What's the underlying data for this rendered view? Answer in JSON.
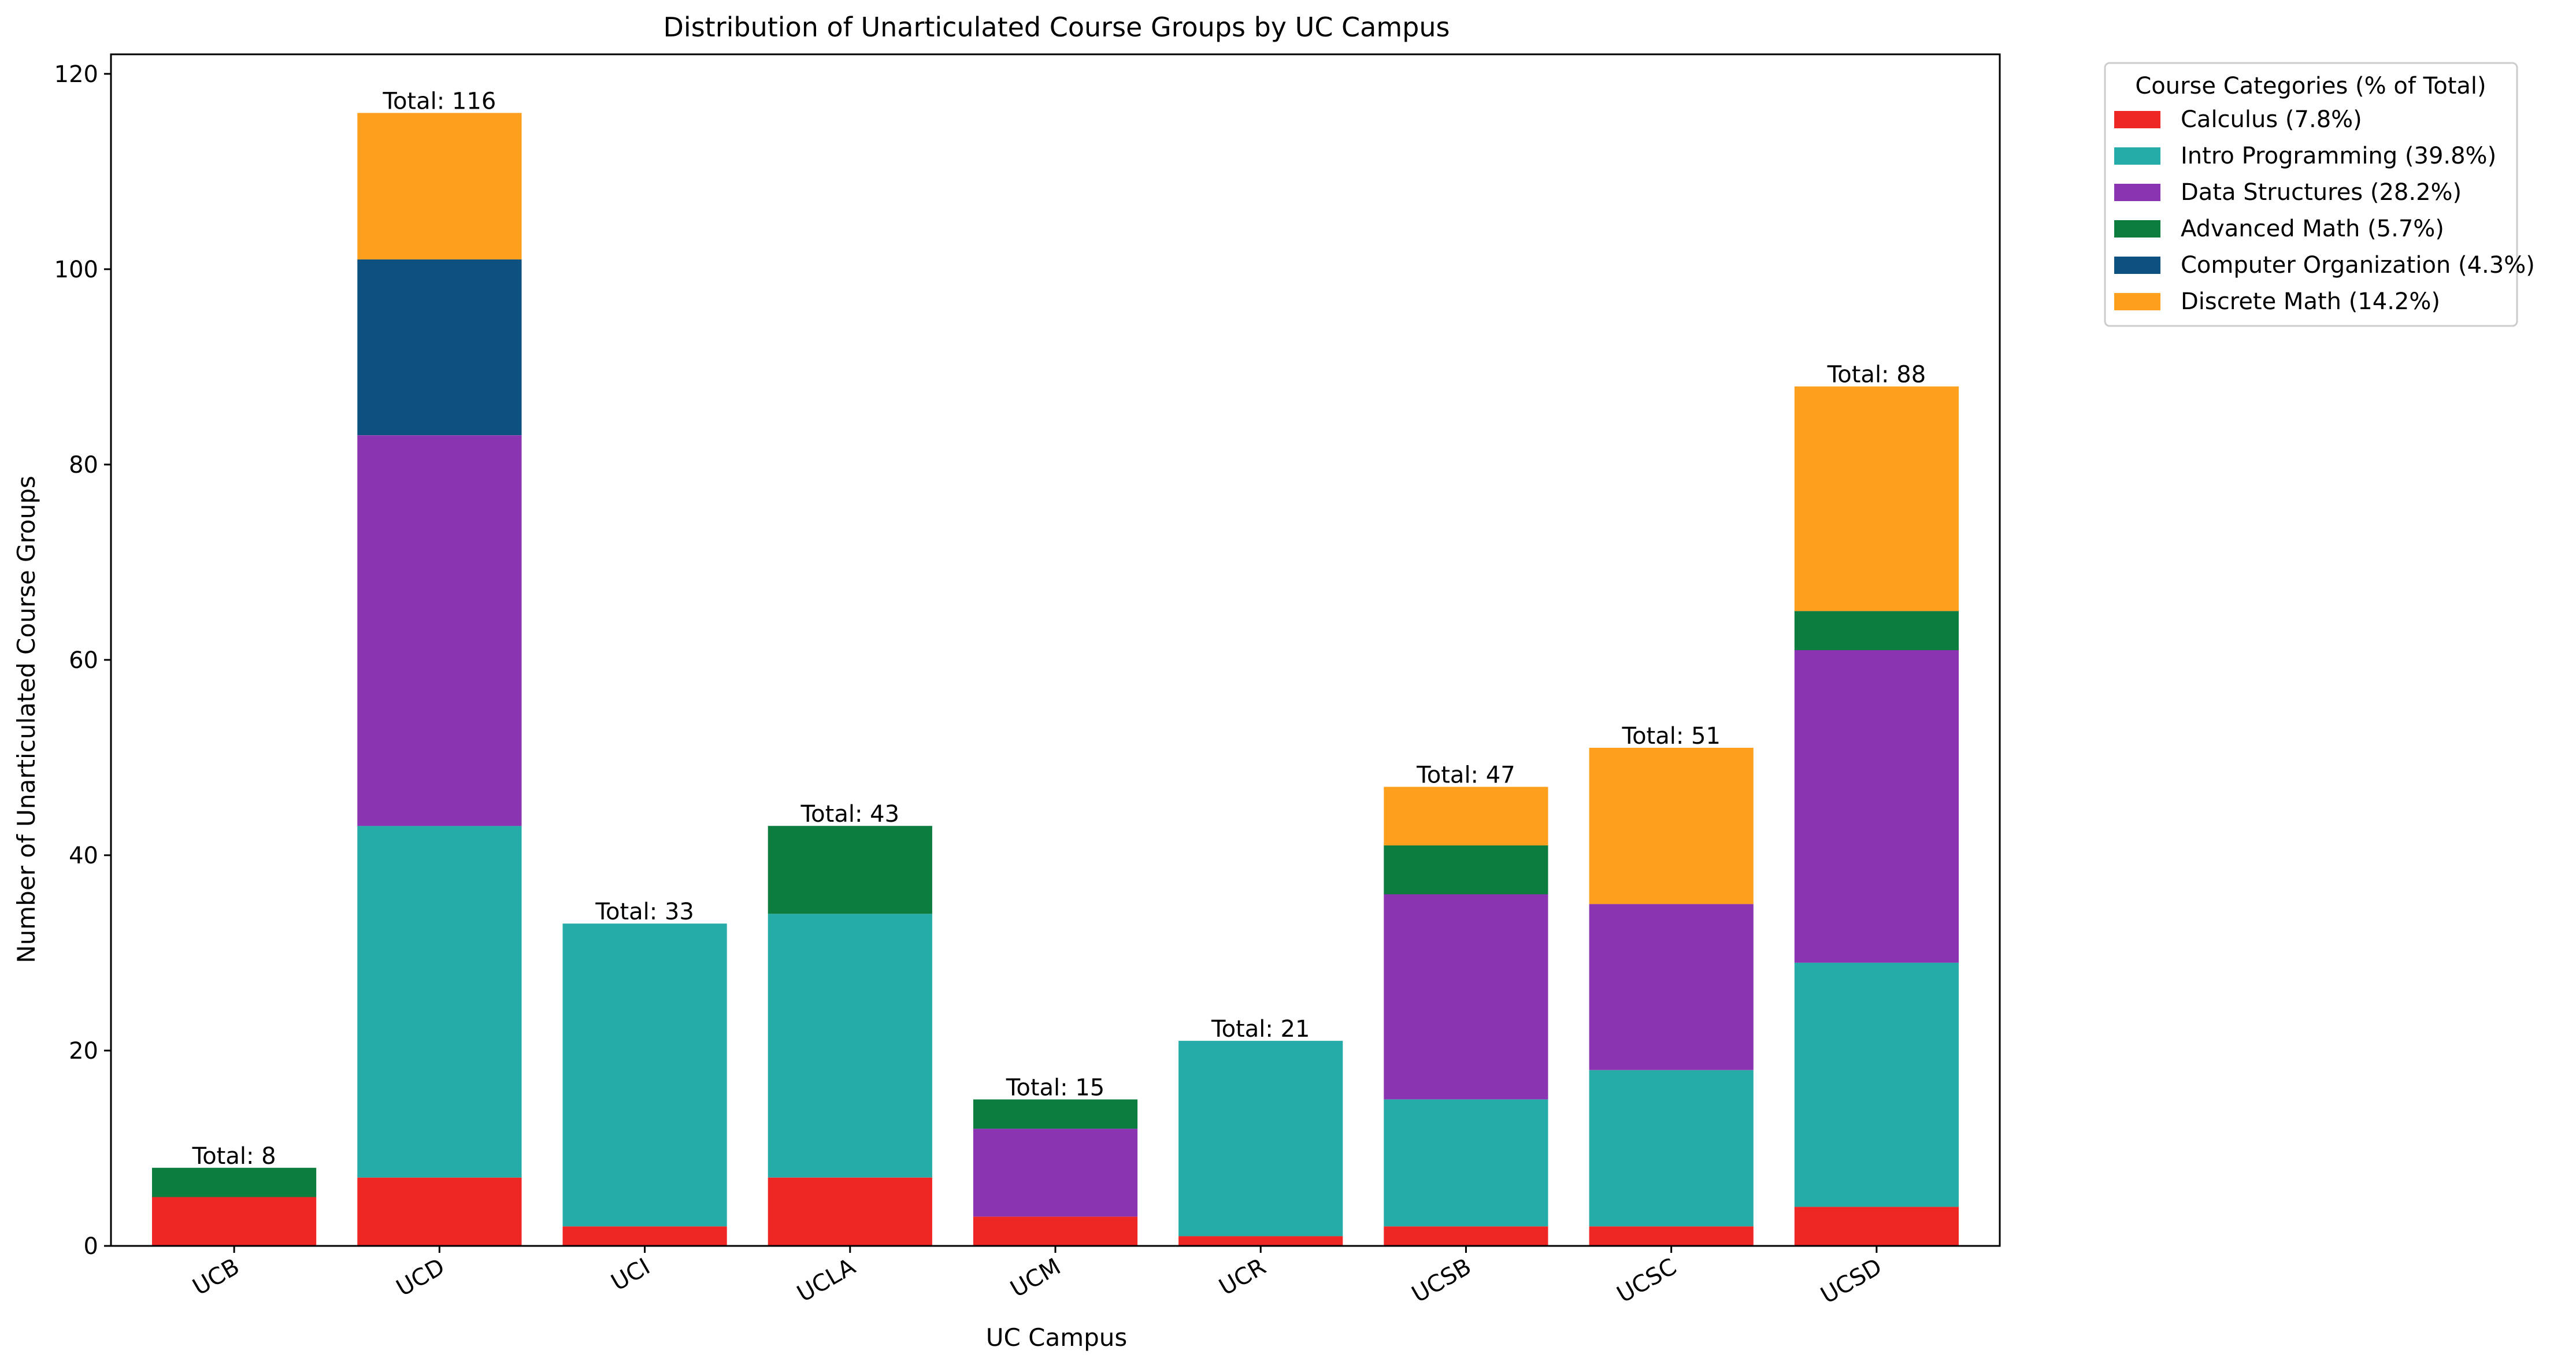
{
  "chart_data": {
    "type": "bar",
    "stacked": true,
    "title": "Distribution of Unarticulated Course Groups by UC Campus",
    "xlabel": "UC Campus",
    "ylabel": "Number of Unarticulated Course Groups",
    "ylim": [
      0,
      122
    ],
    "yticks": [
      0,
      20,
      40,
      60,
      80,
      100,
      120
    ],
    "grid": false,
    "categories": [
      "UCB",
      "UCD",
      "UCI",
      "UCLA",
      "UCM",
      "UCR",
      "UCSB",
      "UCSC",
      "UCSD"
    ],
    "series": [
      {
        "name": "Calculus (7.8%)",
        "color": "#ee2624",
        "values": [
          5,
          7,
          2,
          7,
          3,
          1,
          2,
          2,
          4
        ]
      },
      {
        "name": "Intro Programming (39.8%)",
        "color": "#25aca9",
        "values": [
          0,
          36,
          31,
          27,
          0,
          20,
          13,
          16,
          25
        ]
      },
      {
        "name": "Data Structures (28.2%)",
        "color": "#8b34b2",
        "values": [
          0,
          40,
          0,
          0,
          9,
          0,
          21,
          17,
          32
        ]
      },
      {
        "name": "Advanced Math (5.7%)",
        "color": "#0d7d3f",
        "values": [
          3,
          0,
          0,
          9,
          3,
          0,
          5,
          0,
          4
        ]
      },
      {
        "name": "Computer Organization (4.3%)",
        "color": "#0d5180",
        "values": [
          0,
          18,
          0,
          0,
          0,
          0,
          0,
          0,
          0
        ]
      },
      {
        "name": "Discrete Math (14.2%)",
        "color": "#fe9f1e",
        "values": [
          0,
          15,
          0,
          0,
          0,
          0,
          6,
          16,
          23
        ]
      }
    ],
    "totals": [
      8,
      116,
      33,
      43,
      15,
      21,
      47,
      51,
      88
    ],
    "total_labels": [
      "Total: 8",
      "Total: 116",
      "Total: 33",
      "Total: 43",
      "Total: 15",
      "Total: 21",
      "Total: 47",
      "Total: 51",
      "Total: 88"
    ],
    "legend": {
      "title": "Course Categories (% of Total)",
      "placement": "outside-top-right"
    }
  }
}
